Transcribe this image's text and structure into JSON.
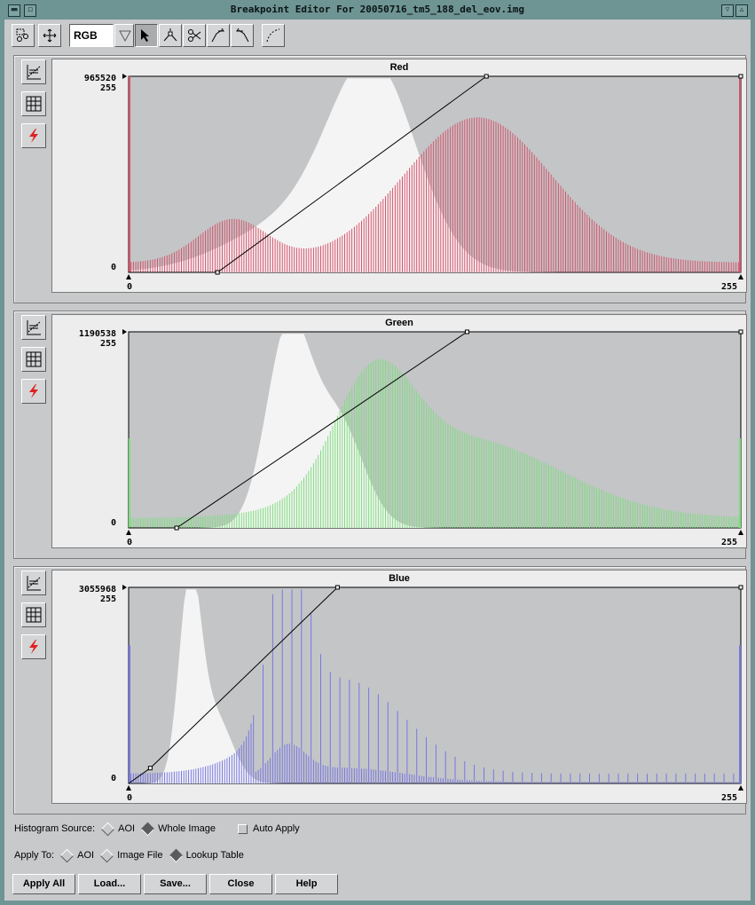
{
  "window": {
    "title": "Breakpoint Editor For 20050716_tm5_188_del_eov.img"
  },
  "toolbar": {
    "color_mode": "RGB",
    "icons": [
      "select-region-icon",
      "move-icon",
      "dropdown-arrow-icon",
      "pointer-icon",
      "insert-breakpoint-icon",
      "cut-breakpoint-icon",
      "shift-right-icon",
      "shift-left-icon",
      "curve-icon"
    ]
  },
  "panels": [
    {
      "title": "Red",
      "max_count": "965520",
      "y_top": "255",
      "y_bottom": "0",
      "x_min": "0",
      "x_max": "255",
      "hist_color": "#d4546a",
      "ref_color": "#f4f4f4"
    },
    {
      "title": "Green",
      "max_count": "1190538",
      "y_top": "255",
      "y_bottom": "0",
      "x_min": "0",
      "x_max": "255",
      "hist_color": "#7fdc7f",
      "ref_color": "#f4f4f4"
    },
    {
      "title": "Blue",
      "max_count": "3055968",
      "y_top": "255",
      "y_bottom": "0",
      "x_min": "0",
      "x_max": "255",
      "hist_color": "#7878e0",
      "ref_color": "#f4f4f4"
    }
  ],
  "side_icons": [
    "histogram-icon",
    "table-icon",
    "lightning-icon"
  ],
  "chart_data": [
    {
      "type": "line",
      "title": "Red",
      "xlim": [
        0,
        255
      ],
      "ylim": [
        0,
        255
      ],
      "series": [
        {
          "x": [
            0,
            37,
            149,
            255
          ],
          "y": [
            0,
            0,
            255,
            255
          ]
        }
      ]
    },
    {
      "type": "line",
      "title": "Green",
      "xlim": [
        0,
        255
      ],
      "ylim": [
        0,
        255
      ],
      "series": [
        {
          "x": [
            0,
            20,
            141,
            255
          ],
          "y": [
            0,
            0,
            255,
            255
          ]
        }
      ]
    },
    {
      "type": "line",
      "title": "Blue",
      "xlim": [
        0,
        255
      ],
      "ylim": [
        0,
        255
      ],
      "series": [
        {
          "x": [
            0,
            9,
            87,
            255
          ],
          "y": [
            0,
            20,
            255,
            255
          ]
        }
      ]
    }
  ],
  "options": {
    "histogram_source_label": "Histogram Source:",
    "hs_aoi": "AOI",
    "hs_whole": "Whole Image",
    "auto_apply": "Auto Apply",
    "apply_to_label": "Apply To:",
    "at_aoi": "AOI",
    "at_image": "Image File",
    "at_lut": "Lookup Table"
  },
  "buttons": {
    "apply_all": "Apply All",
    "load": "Load...",
    "save": "Save...",
    "close": "Close",
    "help": "Help"
  }
}
